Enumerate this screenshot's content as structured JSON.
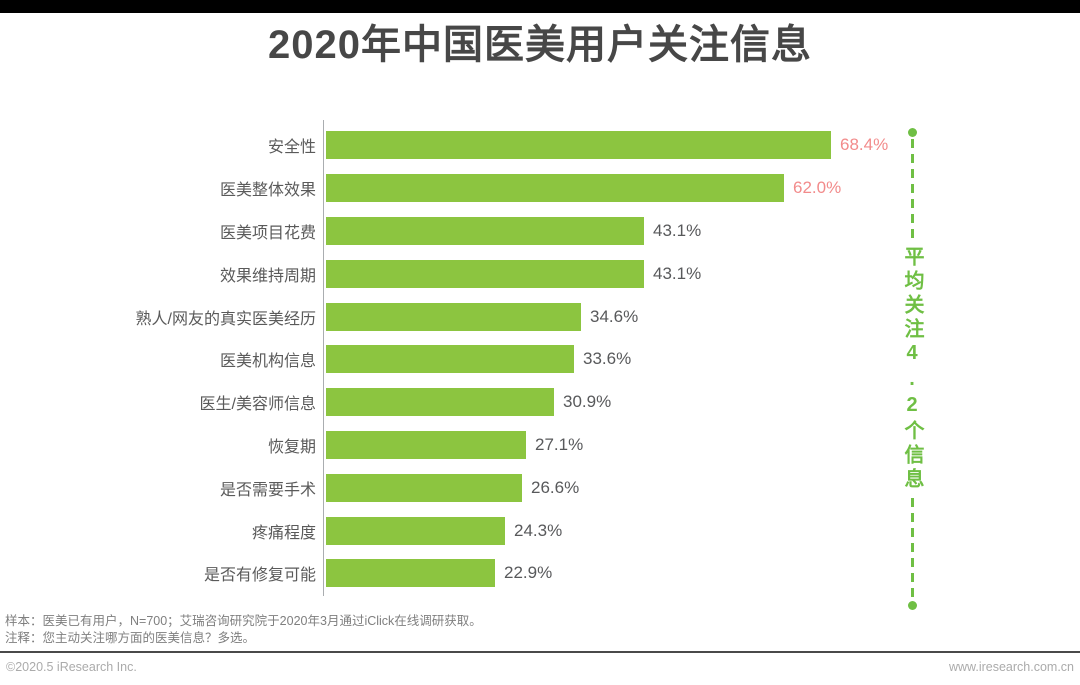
{
  "chart_data": {
    "type": "bar",
    "orientation": "horizontal",
    "title": "2020年中国医美用户关注信息",
    "categories": [
      "安全性",
      "医美整体效果",
      "医美项目花费",
      "效果维持周期",
      "熟人/网友的真实医美经历",
      "医美机构信息",
      "医生/美容师信息",
      "恢复期",
      "是否需要手术",
      "疼痛程度",
      "是否有修复可能"
    ],
    "values": [
      68.4,
      62.0,
      43.1,
      43.1,
      34.6,
      33.6,
      30.9,
      27.1,
      26.6,
      24.3,
      22.9
    ],
    "value_labels": [
      "68.4%",
      "62.0%",
      "43.1%",
      "43.1%",
      "34.6%",
      "33.6%",
      "30.9%",
      "27.1%",
      "26.6%",
      "24.3%",
      "22.9%"
    ],
    "highlight_indexes": [
      0,
      1
    ],
    "xlabel": "",
    "ylabel": "",
    "xlim": [
      0,
      75
    ],
    "grid": false,
    "legend": false,
    "bar_color": "#8CC540",
    "label_color": "#58595b",
    "highlight_label_color": "#F28B8B",
    "axis_color": "#aaadb0"
  },
  "annotation": {
    "text": "平均关注4.2个信息",
    "color": "#6FBF44"
  },
  "footer": {
    "sample_note": "样本：医美已有用户，N=700；艾瑞咨询研究院于2020年3月通过iClick在线调研获取。",
    "method_note": "注释：您主动关注哪方面的医美信息？多选。",
    "copyright": "©2020.5 iResearch Inc.",
    "website": "www.iresearch.com.cn"
  }
}
